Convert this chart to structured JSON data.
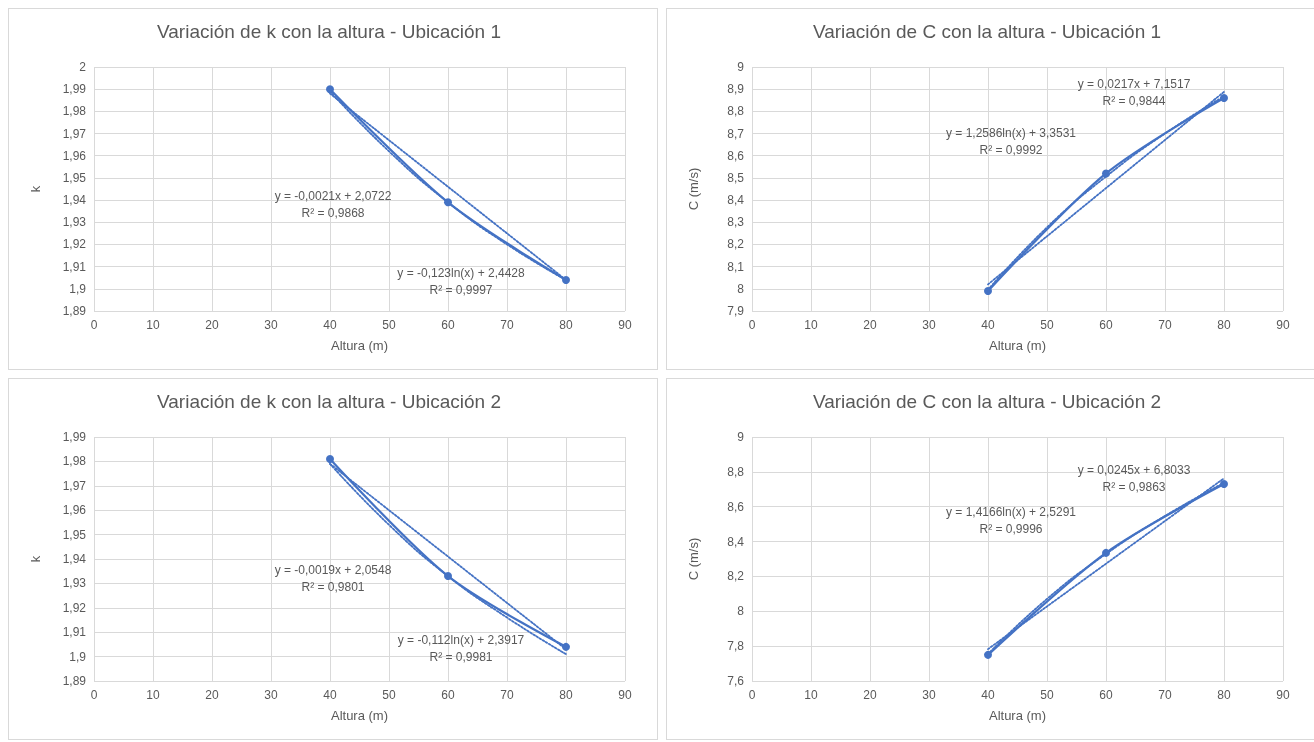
{
  "chart_data": [
    {
      "type": "line",
      "title": "Variación de k con la altura - Ubicación 1",
      "xlabel": "Altura (m)",
      "ylabel": "k",
      "xlim": [
        0,
        90
      ],
      "xticks": [
        0,
        10,
        20,
        30,
        40,
        50,
        60,
        70,
        80,
        90
      ],
      "ylim": [
        1.89,
        2
      ],
      "yticks": [
        {
          "value": 1.89,
          "label": "1,89"
        },
        {
          "value": 1.9,
          "label": "1,9"
        },
        {
          "value": 1.91,
          "label": "1,91"
        },
        {
          "value": 1.92,
          "label": "1,92"
        },
        {
          "value": 1.93,
          "label": "1,93"
        },
        {
          "value": 1.94,
          "label": "1,94"
        },
        {
          "value": 1.95,
          "label": "1,95"
        },
        {
          "value": 1.96,
          "label": "1,96"
        },
        {
          "value": 1.97,
          "label": "1,97"
        },
        {
          "value": 1.98,
          "label": "1,98"
        },
        {
          "value": 1.99,
          "label": "1,99"
        },
        {
          "value": 2,
          "label": "2"
        }
      ],
      "grid": true,
      "series": [
        {
          "color": "#4472c4",
          "x": [
            40,
            60,
            80
          ],
          "values": [
            1.99,
            1.939,
            1.904
          ],
          "marker": "circle",
          "line_style": "solid"
        },
        {
          "color": "#4472c4",
          "x": [
            40,
            80
          ],
          "values": [
            1.988,
            1.904
          ],
          "marker": "none",
          "line_style": "dotted"
        },
        {
          "color": "#4472c4",
          "x": [
            40,
            50,
            60,
            70,
            80
          ],
          "values": [
            1.989,
            1.962,
            1.939,
            1.92,
            1.904
          ],
          "marker": "none",
          "line_style": "dotted"
        }
      ],
      "annotations": [
        "y = -0,0021x + 2,0722\nR² = 0,9868",
        "y = -0,123ln(x) + 2,4428\nR² = 0,9997"
      ]
    },
    {
      "type": "line",
      "title": "Variación de C con la altura - Ubicación 1",
      "xlabel": "Altura (m)",
      "ylabel": "C (m/s)",
      "xlim": [
        0,
        90
      ],
      "xticks": [
        0,
        10,
        20,
        30,
        40,
        50,
        60,
        70,
        80,
        90
      ],
      "ylim": [
        7.9,
        9
      ],
      "yticks": [
        {
          "value": 7.9,
          "label": "7,9"
        },
        {
          "value": 8,
          "label": "8"
        },
        {
          "value": 8.1,
          "label": "8,1"
        },
        {
          "value": 8.2,
          "label": "8,2"
        },
        {
          "value": 8.3,
          "label": "8,3"
        },
        {
          "value": 8.4,
          "label": "8,4"
        },
        {
          "value": 8.5,
          "label": "8,5"
        },
        {
          "value": 8.6,
          "label": "8,6"
        },
        {
          "value": 8.7,
          "label": "8,7"
        },
        {
          "value": 8.8,
          "label": "8,8"
        },
        {
          "value": 8.9,
          "label": "8,9"
        },
        {
          "value": 9,
          "label": "9"
        }
      ],
      "grid": true,
      "series": [
        {
          "color": "#4472c4",
          "x": [
            40,
            60,
            80
          ],
          "values": [
            7.99,
            8.52,
            8.86
          ],
          "marker": "circle",
          "line_style": "solid"
        },
        {
          "color": "#4472c4",
          "x": [
            40,
            80
          ],
          "values": [
            8.02,
            8.888
          ],
          "marker": "none",
          "line_style": "dotted"
        },
        {
          "color": "#4472c4",
          "x": [
            40,
            50,
            60,
            70,
            80
          ],
          "values": [
            7.996,
            8.277,
            8.506,
            8.7,
            8.868
          ],
          "marker": "none",
          "line_style": "dotted"
        }
      ],
      "annotations": [
        "y = 1,2586ln(x) + 3,3531\nR² = 0,9992",
        "y = 0,0217x + 7,1517\nR² = 0,9844"
      ]
    },
    {
      "type": "line",
      "title": "Variación de k con la altura - Ubicación 2",
      "xlabel": "Altura (m)",
      "ylabel": "k",
      "xlim": [
        0,
        90
      ],
      "xticks": [
        0,
        10,
        20,
        30,
        40,
        50,
        60,
        70,
        80,
        90
      ],
      "ylim": [
        1.89,
        1.99
      ],
      "yticks": [
        {
          "value": 1.89,
          "label": "1,89"
        },
        {
          "value": 1.9,
          "label": "1,9"
        },
        {
          "value": 1.91,
          "label": "1,91"
        },
        {
          "value": 1.92,
          "label": "1,92"
        },
        {
          "value": 1.93,
          "label": "1,93"
        },
        {
          "value": 1.94,
          "label": "1,94"
        },
        {
          "value": 1.95,
          "label": "1,95"
        },
        {
          "value": 1.96,
          "label": "1,96"
        },
        {
          "value": 1.97,
          "label": "1,97"
        },
        {
          "value": 1.98,
          "label": "1,98"
        },
        {
          "value": 1.99,
          "label": "1,99"
        }
      ],
      "grid": true,
      "series": [
        {
          "color": "#4472c4",
          "x": [
            40,
            60,
            80
          ],
          "values": [
            1.981,
            1.933,
            1.904
          ],
          "marker": "circle",
          "line_style": "solid"
        },
        {
          "color": "#4472c4",
          "x": [
            40,
            80
          ],
          "values": [
            1.979,
            1.903
          ],
          "marker": "none",
          "line_style": "dotted"
        },
        {
          "color": "#4472c4",
          "x": [
            40,
            50,
            60,
            70,
            80
          ],
          "values": [
            1.979,
            1.954,
            1.933,
            1.916,
            1.901
          ],
          "marker": "none",
          "line_style": "dotted"
        }
      ],
      "annotations": [
        "y = -0,0019x + 2,0548\nR² = 0,9801",
        "y = -0,112ln(x) + 2,3917\nR² = 0,9981"
      ]
    },
    {
      "type": "line",
      "title": "Variación de C con la altura - Ubicación 2",
      "xlabel": "Altura (m)",
      "ylabel": "C (m/s)",
      "xlim": [
        0,
        90
      ],
      "xticks": [
        0,
        10,
        20,
        30,
        40,
        50,
        60,
        70,
        80,
        90
      ],
      "ylim": [
        7.6,
        9
      ],
      "yticks": [
        {
          "value": 7.6,
          "label": "7,6"
        },
        {
          "value": 7.8,
          "label": "7,8"
        },
        {
          "value": 8,
          "label": "8"
        },
        {
          "value": 8.2,
          "label": "8,2"
        },
        {
          "value": 8.4,
          "label": "8,4"
        },
        {
          "value": 8.6,
          "label": "8,6"
        },
        {
          "value": 8.8,
          "label": "8,8"
        },
        {
          "value": 9,
          "label": "9"
        }
      ],
      "grid": true,
      "series": [
        {
          "color": "#4472c4",
          "x": [
            40,
            60,
            80
          ],
          "values": [
            7.75,
            8.335,
            8.73
          ],
          "marker": "circle",
          "line_style": "solid"
        },
        {
          "color": "#4472c4",
          "x": [
            40,
            80
          ],
          "values": [
            7.783,
            8.763
          ],
          "marker": "none",
          "line_style": "dotted"
        },
        {
          "color": "#4472c4",
          "x": [
            40,
            50,
            60,
            70,
            80
          ],
          "values": [
            7.755,
            8.071,
            8.329,
            8.547,
            8.737
          ],
          "marker": "none",
          "line_style": "dotted"
        }
      ],
      "annotations": [
        "y = 1,4166ln(x) + 2,5291\nR² = 0,9996",
        "y = 0,0245x + 6,8033\nR² = 0,9863"
      ]
    }
  ]
}
